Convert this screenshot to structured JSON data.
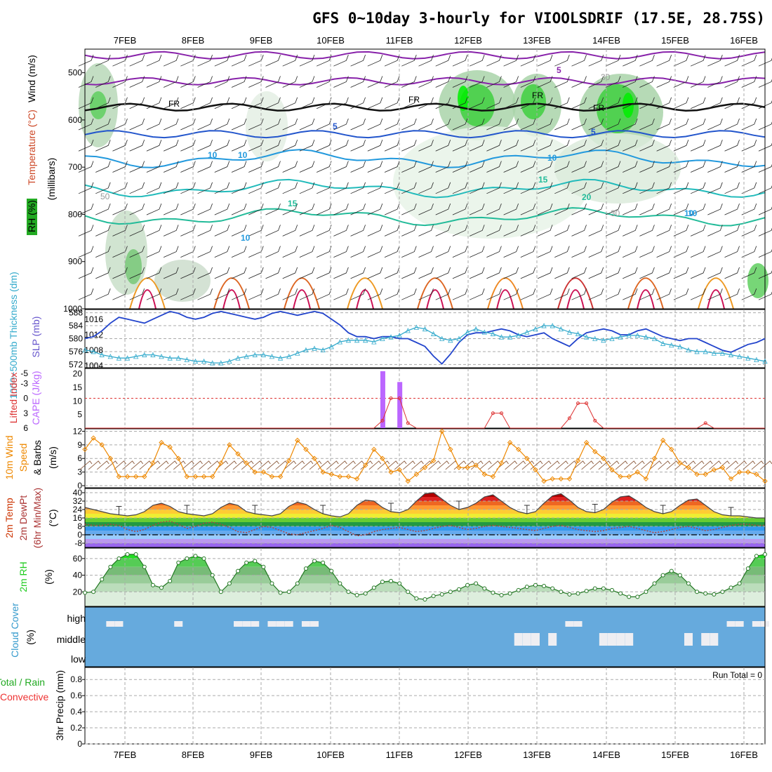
{
  "title": "GFS 0~10day 3-hourly for VIOOLSDRIF (17.5E, 28.75S)",
  "dates": [
    "7FEB",
    "8FEB",
    "9FEB",
    "10FEB",
    "11FEB",
    "12FEB",
    "13FEB",
    "14FEB",
    "15FEB",
    "16FEB"
  ],
  "colors": {
    "rh": "#22cc22",
    "lifted": "#dd3333",
    "cape": "#bb66ff",
    "wind": "#ee8800",
    "temp": "#cc3300",
    "dewpt": "#aa4444",
    "cloud": "#66aadd",
    "thick": "#33aacc",
    "slp": "#2244cc",
    "precip": "#22aa22",
    "conv": "#ee3333"
  },
  "chart_data": [
    {
      "type": "heatmap",
      "panel": "upper-air",
      "ylabel_parts": [
        "RH (%)",
        "Temperature (°C)",
        "Wind (m/s)"
      ],
      "ylabel_units": "(millibars)",
      "yticks": [
        500,
        600,
        700,
        800,
        900,
        1000
      ],
      "ylim": [
        450,
        1000
      ],
      "annotations": [
        "FR",
        "FR",
        "FR",
        "FR",
        "5",
        "5",
        "5",
        "10",
        "10",
        "10",
        "15",
        "15",
        "20",
        "10",
        "30",
        "50",
        "30",
        "10",
        "10"
      ]
    },
    {
      "type": "line",
      "panel": "thickness-slp",
      "ylabel_left": "1000~500mb Thickness (dm)",
      "ylabel_right": "SLP (mb)",
      "yticks_left": [
        572,
        576,
        580,
        584,
        588
      ],
      "yticks_right": [
        1004,
        1008,
        1012,
        1016
      ],
      "thickness": [
        576.5,
        576,
        575,
        574.5,
        574,
        574,
        574.5,
        575,
        575,
        574.5,
        574,
        574,
        573.5,
        573,
        573,
        572.5,
        572.5,
        573,
        574,
        574.5,
        575,
        575,
        574.5,
        574,
        574.5,
        575.5,
        576.5,
        577,
        576.5,
        577.5,
        579,
        579.5,
        579.5,
        579.5,
        579,
        580,
        580.5,
        581,
        582.5,
        583.5,
        583,
        581.5,
        580,
        579.5,
        580,
        582,
        583,
        582,
        581.5,
        580.5,
        580.5,
        581,
        582,
        583,
        584,
        584,
        583,
        582,
        581.5,
        580.5,
        580,
        579.5,
        580,
        580.5,
        581,
        581,
        580.5,
        580,
        578.5,
        578,
        577.5,
        576.5,
        576,
        576,
        575.5,
        575.5,
        575,
        574.5,
        574,
        573.5,
        573
      ],
      "slp": [
        1011,
        1011.5,
        1013,
        1015,
        1016.5,
        1016,
        1015.5,
        1015,
        1016,
        1017,
        1018,
        1017.5,
        1016.5,
        1016,
        1016.5,
        1017.5,
        1018,
        1017.5,
        1017,
        1016.5,
        1016,
        1016.5,
        1017.5,
        1018,
        1017.5,
        1017,
        1017.5,
        1018,
        1017.5,
        1016,
        1014.5,
        1012.5,
        1011.5,
        1011.5,
        1011,
        1011.5,
        1011.5,
        1011,
        1011,
        1010,
        1009,
        1006.5,
        1004.5,
        1007,
        1010,
        1012,
        1012.5,
        1012.5,
        1013,
        1013.5,
        1013,
        1012,
        1011.5,
        1012,
        1012.5,
        1011,
        1010,
        1009,
        1011,
        1012.5,
        1013,
        1013.5,
        1013,
        1012,
        1012,
        1013,
        1013.5,
        1012.5,
        1011.5,
        1011,
        1010.5,
        1011,
        1011,
        1010,
        1009,
        1008,
        1007.5,
        1008.5,
        1009.5,
        1010,
        1011
      ]
    },
    {
      "type": "bar",
      "panel": "cape-lifted",
      "ylabel_left": "Lifted Index",
      "ylabel_right": "CAPE (J/kg)",
      "yticks_left": [
        -5,
        -3,
        0,
        3,
        6
      ],
      "yticks_right": [
        5,
        10,
        15,
        20
      ],
      "cape": {
        "x_index": [
          35,
          37
        ],
        "values": [
          21,
          17
        ]
      },
      "lifted": [
        6,
        6,
        6,
        6,
        6,
        6,
        6,
        6,
        6,
        6,
        6,
        6,
        6,
        6,
        6,
        6,
        6,
        6,
        6,
        6,
        6,
        6,
        6,
        6,
        6,
        6,
        6,
        6,
        6,
        6,
        6,
        6,
        6,
        6,
        6,
        4.5,
        0,
        0,
        5,
        6,
        6,
        6,
        6,
        6,
        6,
        6,
        6,
        6,
        3,
        3,
        6,
        6,
        6,
        6,
        6,
        6,
        6,
        4,
        1,
        1,
        4.5,
        6,
        6,
        6,
        6,
        6,
        6,
        6,
        6,
        6,
        6,
        6,
        6,
        5,
        6,
        6,
        6,
        6,
        6,
        6,
        6
      ]
    },
    {
      "type": "line",
      "panel": "10m-wind",
      "ylabel": "10m Wind Speed & Barbs (m/s)",
      "yticks": [
        0,
        3,
        6,
        9,
        12
      ],
      "values": [
        8,
        10.5,
        9,
        6,
        2,
        2,
        2,
        2,
        5,
        9.5,
        8.5,
        6,
        2,
        2,
        2,
        2,
        5,
        9,
        7,
        5,
        3,
        3,
        2,
        2,
        5.5,
        10,
        8,
        6,
        3,
        2.5,
        2,
        2,
        1.5,
        4.5,
        8,
        6,
        3,
        3.5,
        1,
        2.5,
        4,
        5.5,
        12,
        8,
        4,
        4,
        4.5,
        2.5,
        2,
        5,
        9.5,
        8,
        6,
        3.5,
        1,
        1.5,
        1.5,
        1.5,
        5.5,
        9.5,
        7.5,
        6,
        3.5,
        2,
        2,
        3,
        1.5,
        6,
        10,
        8,
        5,
        4,
        2.5,
        2.5,
        3.5,
        4,
        1.5,
        3,
        3,
        2.5,
        1
      ]
    },
    {
      "type": "area",
      "panel": "2m-temp",
      "ylabel": "2m Temp 2m DewPt (6hr Min/Max) (°C)",
      "yticks": [
        -8,
        0,
        8,
        16,
        24,
        32,
        40
      ],
      "temp": [
        26,
        24,
        22,
        20,
        19,
        18,
        19,
        22,
        28,
        30,
        27,
        22,
        20,
        19,
        18,
        20,
        26,
        30,
        28,
        22,
        20,
        19,
        18,
        20,
        27,
        31,
        29,
        24,
        20,
        18,
        17,
        20,
        28,
        33,
        32,
        26,
        22,
        21,
        24,
        32,
        39,
        40,
        34,
        28,
        24,
        26,
        30,
        36,
        38,
        32,
        26,
        22,
        20,
        22,
        30,
        37,
        39,
        33,
        26,
        22,
        21,
        24,
        31,
        36,
        37,
        32,
        26,
        22,
        20,
        22,
        28,
        33,
        34,
        28,
        22,
        19,
        18,
        18,
        17,
        16,
        16
      ],
      "dewpt": [
        10,
        9,
        9,
        10,
        9,
        5,
        3,
        5,
        9,
        12,
        13,
        10,
        6,
        8,
        11,
        12,
        10,
        7,
        3,
        2,
        5,
        8,
        7,
        4,
        1,
        0,
        2,
        4,
        6,
        9,
        7,
        3,
        -1,
        0,
        3,
        5,
        6,
        7,
        5,
        3,
        4,
        6,
        8,
        9,
        7,
        5,
        6,
        8,
        9,
        8,
        7,
        6,
        5,
        4,
        6,
        8,
        9,
        7,
        5,
        4,
        3,
        4,
        6,
        7,
        8,
        6,
        4,
        2,
        3,
        5,
        7,
        8,
        6,
        4,
        5,
        7,
        9,
        10,
        10,
        9,
        9
      ]
    },
    {
      "type": "area",
      "panel": "2m-rh",
      "ylabel": "2m RH (%)",
      "yticks": [
        20,
        40,
        60
      ],
      "values": [
        19,
        20,
        35,
        50,
        60,
        65,
        65,
        50,
        28,
        25,
        33,
        55,
        60,
        63,
        60,
        40,
        20,
        30,
        45,
        55,
        57,
        50,
        30,
        19,
        20,
        30,
        48,
        57,
        55,
        45,
        30,
        20,
        16,
        18,
        25,
        32,
        33,
        30,
        20,
        12,
        11,
        15,
        17,
        20,
        23,
        28,
        30,
        24,
        19,
        16,
        18,
        22,
        26,
        28,
        27,
        24,
        20,
        17,
        18,
        21,
        24,
        24,
        22,
        18,
        14,
        14,
        20,
        30,
        40,
        45,
        40,
        30,
        20,
        18,
        17,
        20,
        25,
        30,
        48,
        63,
        65
      ],
      "ylim": [
        0,
        70
      ]
    },
    {
      "type": "bar",
      "panel": "cloud-cover",
      "ylabel": "Cloud Cover (%)",
      "ytick_labels": [
        "high",
        "middle",
        "low"
      ],
      "high_hits": [
        3,
        4,
        11,
        18,
        19,
        20,
        22,
        23,
        24,
        26,
        27,
        57,
        58,
        76,
        77,
        79,
        80,
        82,
        83,
        85,
        86,
        87
      ],
      "middle_hits": [
        51,
        52,
        53,
        55,
        61,
        62,
        63,
        64,
        71,
        73,
        74
      ]
    },
    {
      "type": "bar",
      "panel": "precip",
      "ylabel_left": "Total / Rain",
      "ylabel_left2": "Convective",
      "ylabel": "3hr Precip (mm)",
      "yticks": [
        0,
        0.2,
        0.4,
        0.6,
        0.8
      ],
      "run_total": "Run Total = 0"
    }
  ]
}
